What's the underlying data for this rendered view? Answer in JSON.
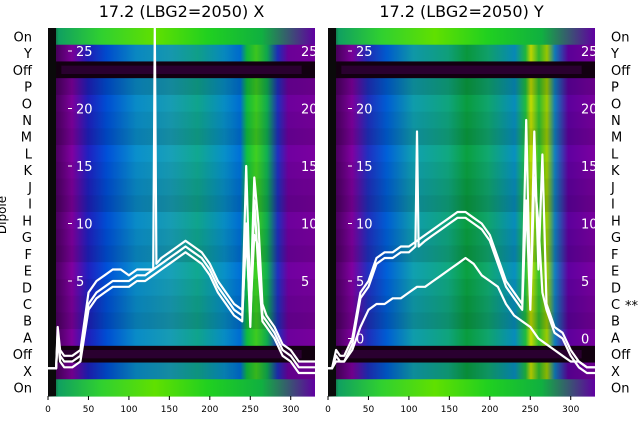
{
  "chart_data": [
    {
      "type": "heatmap",
      "title": "17.2 (LBG2=2050) X",
      "ylabel": "Dipole",
      "xlim": [
        0,
        330
      ],
      "xticks": [
        0,
        50,
        100,
        150,
        200,
        250,
        300
      ],
      "row_labels": [
        "On",
        "Y",
        "Off",
        "P",
        "O",
        "N",
        "M",
        "L",
        "K",
        "J",
        "I",
        "H",
        "G",
        "F",
        "E",
        "D",
        "C",
        "B",
        "A",
        "Off",
        "X",
        "On"
      ],
      "row_marks": [
        "",
        "",
        "",
        "",
        "",
        "",
        "",
        "",
        "",
        "",
        "",
        "",
        "",
        "",
        "",
        "",
        "",
        "",
        "",
        "",
        "",
        ""
      ],
      "overlay_yticks": [
        5,
        10,
        15,
        20,
        25
      ],
      "overlay_ylim": [
        -5,
        27
      ],
      "overlay_series": [
        {
          "x": [
            0,
            5,
            10,
            12,
            15,
            20,
            30,
            40,
            50,
            60,
            70,
            80,
            90,
            100,
            110,
            120,
            130,
            140,
            150,
            160,
            170,
            180,
            190,
            200,
            210,
            220,
            230,
            240,
            245,
            250,
            255,
            260,
            265,
            270,
            280,
            290,
            300,
            310,
            320,
            330
          ],
          "y": [
            -2.6,
            -2.6,
            -2.6,
            0.5,
            -1.5,
            -2,
            -2,
            -1.5,
            3,
            4,
            4.5,
            5,
            5,
            5,
            5.5,
            5.5,
            6,
            6.5,
            7,
            7.5,
            8,
            7.5,
            7,
            6,
            4.5,
            3.5,
            2.5,
            2,
            9,
            2,
            9,
            8,
            2,
            1.5,
            0.5,
            -1,
            -1.5,
            -2.5,
            -2.5,
            -2.5
          ]
        },
        {
          "x": [
            0,
            5,
            10,
            12,
            15,
            20,
            30,
            40,
            50,
            60,
            70,
            80,
            90,
            100,
            110,
            120,
            130,
            140,
            150,
            160,
            170,
            180,
            190,
            200,
            210,
            220,
            230,
            240,
            245,
            250,
            255,
            260,
            265,
            270,
            280,
            290,
            300,
            310,
            320,
            330
          ],
          "y": [
            -2.6,
            -2.6,
            -2.6,
            0,
            -2,
            -2.5,
            -2.5,
            -2,
            2.5,
            3.5,
            4,
            4.5,
            4.5,
            4.5,
            5,
            5,
            5.5,
            6,
            6.5,
            7,
            7.5,
            7,
            6.5,
            5.5,
            4,
            3,
            2,
            1.5,
            10,
            1,
            12,
            6,
            1.5,
            1,
            0,
            -1.5,
            -2,
            -3,
            -3,
            -3
          ]
        },
        {
          "x": [
            0,
            5,
            10,
            12,
            15,
            20,
            30,
            40,
            50,
            60,
            70,
            80,
            90,
            100,
            110,
            120,
            130,
            132,
            134,
            140,
            150,
            160,
            170,
            180,
            190,
            200,
            210,
            220,
            230,
            240,
            245,
            250,
            255,
            260,
            265,
            270,
            280,
            290,
            300,
            310,
            320,
            330
          ],
          "y": [
            -2.6,
            -2.6,
            -2.6,
            1,
            -1,
            -1.5,
            -1.5,
            -1,
            4,
            5,
            5.5,
            6,
            6,
            5.5,
            6,
            6,
            6,
            27,
            6.5,
            7,
            7.5,
            8,
            8.5,
            8,
            7.5,
            6.5,
            5,
            4,
            3,
            2.5,
            15,
            3,
            14,
            10,
            3,
            2,
            1,
            -0.5,
            -1,
            -2,
            -2,
            -2
          ]
        }
      ]
    },
    {
      "type": "heatmap",
      "title": "17.2 (LBG2=2050) Y",
      "xlim": [
        0,
        330
      ],
      "xticks": [
        0,
        50,
        100,
        150,
        200,
        250,
        300
      ],
      "row_labels": [
        "On",
        "Y",
        "Off",
        "P",
        "O",
        "N",
        "M",
        "L",
        "K",
        "J",
        "I",
        "H",
        "G",
        "F",
        "E",
        "D",
        "C",
        "B",
        "A",
        "Off",
        "X",
        "On"
      ],
      "row_marks": [
        "",
        "",
        "",
        "",
        "",
        "",
        "",
        "",
        "",
        "",
        "",
        "",
        "",
        "",
        "",
        "",
        "**",
        "",
        "",
        "",
        "",
        ""
      ],
      "overlay_yticks": [
        0,
        5,
        10,
        15,
        20,
        25
      ],
      "overlay_ylim": [
        -5,
        27
      ],
      "overlay_series": [
        {
          "x": [
            0,
            5,
            10,
            15,
            20,
            30,
            40,
            50,
            60,
            70,
            80,
            90,
            100,
            110,
            120,
            130,
            140,
            150,
            160,
            170,
            180,
            190,
            200,
            210,
            220,
            230,
            240,
            245,
            250,
            255,
            260,
            265,
            270,
            280,
            290,
            300,
            310,
            320,
            330
          ],
          "y": [
            -2.6,
            -2.6,
            -1,
            -1.5,
            -1.5,
            0,
            4,
            5,
            7,
            7.5,
            7.5,
            8,
            8,
            8.5,
            9,
            9.5,
            10,
            10.5,
            11,
            11,
            10.5,
            10,
            9,
            7,
            5,
            4,
            3,
            19,
            3,
            18,
            6,
            16,
            3,
            1,
            0.5,
            -1,
            -2,
            -2.5,
            -2.5
          ]
        },
        {
          "x": [
            0,
            5,
            10,
            15,
            20,
            30,
            40,
            50,
            60,
            70,
            80,
            90,
            100,
            108,
            110,
            112,
            120,
            130,
            140,
            150,
            160,
            170,
            180,
            190,
            200,
            210,
            220,
            230,
            240,
            245,
            250,
            255,
            260,
            265,
            270,
            280,
            290,
            300,
            310,
            320,
            330
          ],
          "y": [
            -2.6,
            -2.6,
            -1.5,
            -2,
            -2,
            -0.5,
            3.5,
            4.5,
            6.5,
            7,
            7,
            7.5,
            7.5,
            8,
            18,
            8,
            8.5,
            9,
            9.5,
            10,
            10.5,
            10.5,
            10,
            9.5,
            8.5,
            6.5,
            4.5,
            3.5,
            2.5,
            12,
            2.5,
            14,
            10,
            4,
            2.5,
            0.5,
            0,
            -1.5,
            -2.5,
            -3,
            -3
          ]
        },
        {
          "x": [
            0,
            5,
            10,
            15,
            20,
            30,
            40,
            50,
            60,
            70,
            80,
            90,
            100,
            110,
            120,
            130,
            140,
            150,
            160,
            170,
            180,
            190,
            200,
            210,
            220,
            230,
            240,
            250,
            260,
            270,
            280,
            290,
            300,
            310,
            320,
            330
          ],
          "y": [
            -2.6,
            -2.6,
            -2,
            -2,
            -2,
            -1,
            1,
            2.5,
            3,
            3,
            3.5,
            3.5,
            4,
            4.5,
            4.5,
            5,
            5.5,
            6,
            6.5,
            7,
            6.5,
            5.5,
            5,
            4.5,
            3,
            2,
            1.5,
            1,
            0,
            -0.5,
            -1,
            -1.5,
            -2,
            -2,
            -2.5,
            -2.5
          ]
        }
      ]
    }
  ]
}
